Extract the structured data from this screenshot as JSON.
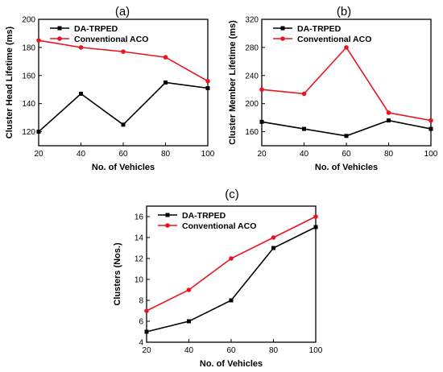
{
  "colors": {
    "da_trped": "#000000",
    "aco": "#e8141e"
  },
  "chart_data": [
    {
      "panel": "(a)",
      "type": "line",
      "x": [
        20,
        40,
        60,
        80,
        100
      ],
      "xlabel": "No. of Vehicles",
      "ylabel": "Cluster Head Lifetime (ms)",
      "xlim": [
        20,
        100
      ],
      "ylim": [
        110,
        200
      ],
      "xticks": [
        20,
        40,
        60,
        80,
        100
      ],
      "yticks": [
        120,
        140,
        160,
        180,
        200
      ],
      "legend": "top-left",
      "grid": false,
      "series": [
        {
          "name": "DA-TRPED",
          "color": "#000000",
          "marker": "square",
          "values": [
            120,
            147,
            125,
            155,
            151
          ]
        },
        {
          "name": "Conventional ACO",
          "color": "#e8141e",
          "marker": "circle",
          "values": [
            185,
            180,
            177,
            173,
            156
          ]
        }
      ]
    },
    {
      "panel": "(b)",
      "type": "line",
      "x": [
        20,
        40,
        60,
        80,
        100
      ],
      "xlabel": "No. of Vehicles",
      "ylabel": "Cluster Member Lifetime (ms)",
      "xlim": [
        20,
        100
      ],
      "ylim": [
        140,
        320
      ],
      "xticks": [
        20,
        40,
        60,
        80,
        100
      ],
      "yticks": [
        160,
        200,
        240,
        280,
        320
      ],
      "legend": "top-left",
      "grid": false,
      "series": [
        {
          "name": "DA-TRPED",
          "color": "#000000",
          "marker": "square",
          "values": [
            174,
            164,
            154,
            176,
            164
          ]
        },
        {
          "name": "Conventional ACO",
          "color": "#e8141e",
          "marker": "circle",
          "values": [
            220,
            214,
            280,
            187,
            176
          ]
        }
      ]
    },
    {
      "panel": "(c)",
      "type": "line",
      "x": [
        20,
        40,
        60,
        80,
        100
      ],
      "xlabel": "No. of Vehicles",
      "ylabel": "Clusters (Nos.)",
      "xlim": [
        20,
        100
      ],
      "ylim": [
        4,
        17
      ],
      "xticks": [
        20,
        40,
        60,
        80,
        100
      ],
      "yticks": [
        4,
        6,
        8,
        10,
        12,
        14,
        16
      ],
      "legend": "top-left",
      "grid": false,
      "series": [
        {
          "name": "DA-TRPED",
          "color": "#000000",
          "marker": "square",
          "values": [
            5,
            6,
            8,
            13,
            15
          ]
        },
        {
          "name": "Conventional ACO",
          "color": "#e8141e",
          "marker": "circle",
          "values": [
            7,
            9,
            12,
            14,
            16
          ]
        }
      ]
    }
  ]
}
